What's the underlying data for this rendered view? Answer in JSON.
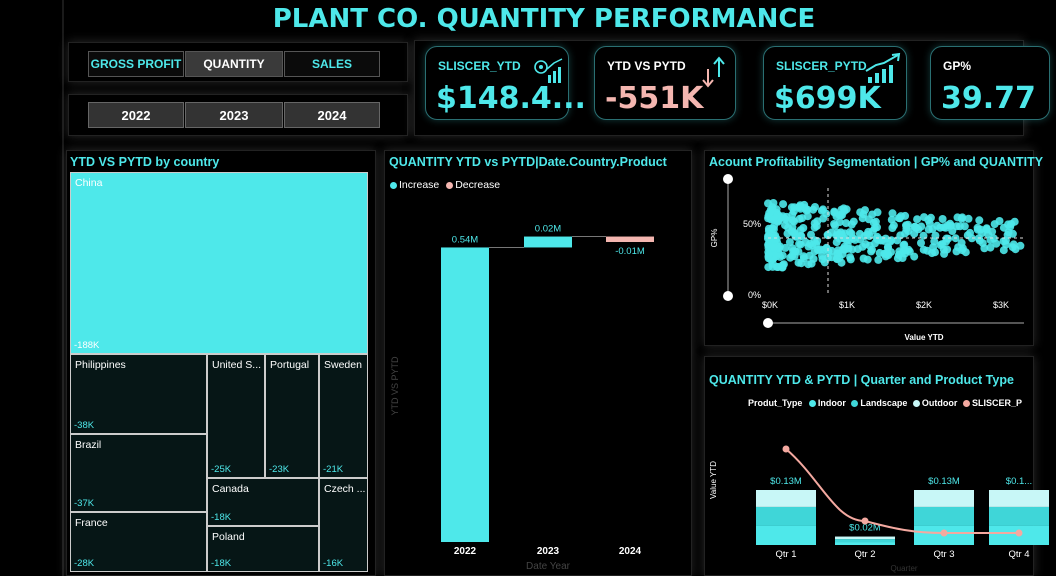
{
  "title": "PLANT CO. QUANTITY PERFORMANCE",
  "metric_tabs": [
    "GROSS PROFIT",
    "QUANTITY",
    "SALES"
  ],
  "selected_metric": "QUANTITY",
  "years": [
    "2022",
    "2023",
    "2024"
  ],
  "kpis": [
    {
      "label": "SLISCER_YTD",
      "value": "$148.4...",
      "icon": "gear-chart-icon"
    },
    {
      "label": "YTD VS PYTD",
      "value": "-551K",
      "icon": "up-down-arrows-icon"
    },
    {
      "label": "SLISCER_PYTD",
      "value": "$699K",
      "icon": "trend-up-bars-icon"
    },
    {
      "label": "GP%",
      "value": "39.77"
    }
  ],
  "treemap": {
    "title": "YTD VS PYTD by country",
    "items": [
      {
        "name": "China",
        "value": "-188K"
      },
      {
        "name": "Philippines",
        "value": "-38K"
      },
      {
        "name": "Brazil",
        "value": "-37K"
      },
      {
        "name": "France",
        "value": "-28K"
      },
      {
        "name": "United S...",
        "value": "-25K"
      },
      {
        "name": "Portugal",
        "value": "-23K"
      },
      {
        "name": "Sweden",
        "value": "-21K"
      },
      {
        "name": "Canada",
        "value": "-18K"
      },
      {
        "name": "Poland",
        "value": "-18K"
      },
      {
        "name": "Czech ...",
        "value": "-16K"
      }
    ]
  },
  "waterfall": {
    "title": "QUANTITY YTD vs PYTD|Date.Country.Product",
    "legend": [
      "Increase",
      "Decrease"
    ],
    "ylabel": "YTD VS PYTD",
    "xlabel": "Date Year"
  },
  "scatter": {
    "title": "Acount Profitability Segmentation | GP% and QUANTITY",
    "ylabel": "GP%",
    "xlabel": "Value YTD",
    "yticks": [
      "50%",
      "0%"
    ],
    "xticks": [
      "$0K",
      "$1K",
      "$2K",
      "$3K"
    ]
  },
  "combo": {
    "title": "QUANTITY YTD & PYTD | Quarter and Product Type",
    "legend_title": "Produt_Type",
    "legend": [
      "Indoor",
      "Landscape",
      "Outdoor",
      "SLISCER_P"
    ],
    "ylabel": "Value YTD",
    "xlabel": "Quarter"
  },
  "chart_data": [
    {
      "type": "bar",
      "subtype": "waterfall",
      "categories": [
        "2022",
        "2023",
        "2024"
      ],
      "values": [
        0.54,
        0.02,
        -0.01
      ],
      "labels": [
        "0.54M",
        "0.02M",
        "-0.01M"
      ],
      "title": "QUANTITY YTD vs PYTD|Date.Country.Product",
      "xlabel": "Date Year",
      "ylabel": "YTD VS PYTD",
      "colors": {
        "increase": "#4ee8ea",
        "decrease": "#f4b6b0"
      }
    },
    {
      "type": "bar",
      "subtype": "stacked-bar-with-line",
      "categories": [
        "Qtr 1",
        "Qtr 2",
        "Qtr 3",
        "Qtr 4"
      ],
      "labels": [
        "$0.13M",
        "$0.02M",
        "$0.13M",
        "$0.1..."
      ],
      "totals": [
        0.13,
        0.02,
        0.13,
        0.13
      ],
      "series": [
        {
          "name": "Indoor",
          "values": [
            0.045,
            0.007,
            0.045,
            0.045
          ]
        },
        {
          "name": "Landscape",
          "values": [
            0.045,
            0.007,
            0.045,
            0.045
          ]
        },
        {
          "name": "Outdoor",
          "values": [
            0.04,
            0.006,
            0.04,
            0.04
          ]
        },
        {
          "name": "SLISCER_P",
          "values": [
            0.26,
            0.08,
            0.05,
            0.05
          ],
          "type": "line"
        }
      ],
      "xlabel": "Quarter",
      "ylabel": "Value YTD",
      "colors": {
        "Indoor": "#4ee8ea",
        "Landscape": "#3fd6d8",
        "Outdoor": "#c8f7f7",
        "SLISCER_P": "#f4a9a0"
      }
    },
    {
      "type": "scatter",
      "title": "Acount Profitability Segmentation | GP% and QUANTITY",
      "xlabel": "Value YTD",
      "ylabel": "GP%",
      "xlim": [
        0,
        3200
      ],
      "ylim": [
        0,
        0.6
      ],
      "xticks": [
        "$0K",
        "$1K",
        "$2K",
        "$3K"
      ],
      "yticks": [
        "0%",
        "50%"
      ],
      "reference_lines": {
        "x": 750,
        "y": 0.4
      },
      "color": "#4ee8ea"
    }
  ],
  "colors": {
    "accent": "#4ee8ea",
    "negative": "#f4b6b0",
    "background": "#000000"
  }
}
